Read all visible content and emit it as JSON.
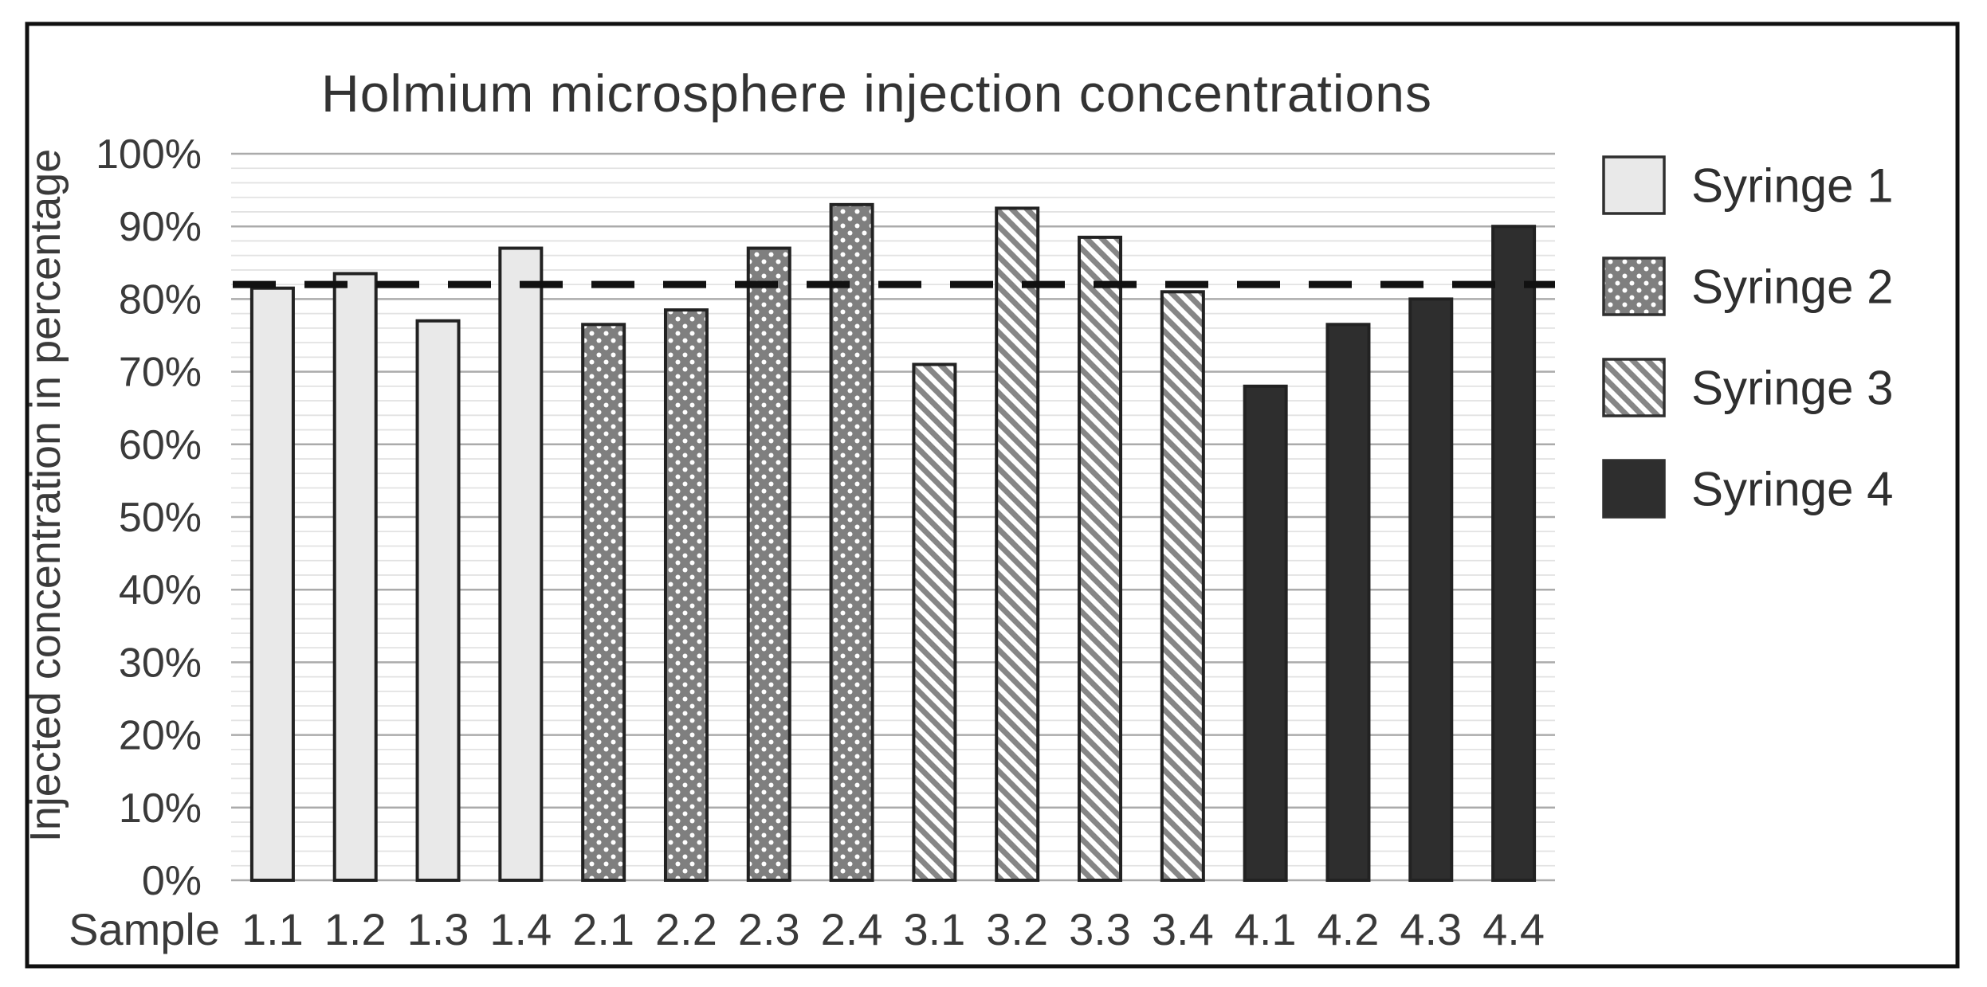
{
  "title": "Holmium microsphere injection concentrations",
  "y_axis": {
    "label": "Injected concentration in percentage",
    "tick_labels": [
      "100%",
      "90%",
      "80%",
      "70%",
      "60%",
      "50%",
      "40%",
      "30%",
      "20%",
      "10%",
      "0%"
    ]
  },
  "x_axis": {
    "label": "Sample",
    "tick_labels": [
      "1.1",
      "1.2",
      "1.3",
      "1.4",
      "2.1",
      "2.2",
      "2.3",
      "2.4",
      "3.1",
      "3.2",
      "3.3",
      "3.4",
      "4.1",
      "4.2",
      "4.3",
      "4.4"
    ]
  },
  "legend": {
    "position": "right",
    "entries": [
      "Syringe 1",
      "Syringe 2",
      "Syringe 3",
      "Syringe 4"
    ]
  },
  "colors": {
    "text": "#3a3a3a",
    "title_text": "#333333",
    "frame": "#101010",
    "grid_major": "#ababab",
    "grid_minor": "#e2e2e2",
    "bar_border": "#222222",
    "syringe1_fill": "#e9e9e9",
    "syringe2_base": "#7f7f7f",
    "syringe2_dot": "#ffffff",
    "syringe3_base": "#ffffff",
    "syringe3_stripe": "#868686",
    "syringe4_fill": "#2e2e2e",
    "reference_line": "#111111"
  },
  "chart_data": {
    "type": "bar",
    "title": "Holmium microsphere injection concentrations",
    "xlabel": "Sample",
    "ylabel": "Injected concentration in percentage",
    "ylim": [
      0,
      100
    ],
    "y_major_step": 10,
    "y_minor_step": 2,
    "grid": "horizontal",
    "legend_position": "right",
    "categories": [
      "1.1",
      "1.2",
      "1.3",
      "1.4",
      "2.1",
      "2.2",
      "2.3",
      "2.4",
      "3.1",
      "3.2",
      "3.3",
      "3.4",
      "4.1",
      "4.2",
      "4.3",
      "4.4"
    ],
    "series": [
      {
        "name": "Syringe 1",
        "pattern": "light-solid",
        "categories": [
          "1.1",
          "1.2",
          "1.3",
          "1.4"
        ],
        "values": [
          81.5,
          83.5,
          77,
          87
        ]
      },
      {
        "name": "Syringe 2",
        "pattern": "dark-dotted",
        "categories": [
          "2.1",
          "2.2",
          "2.3",
          "2.4"
        ],
        "values": [
          76.5,
          78.5,
          87,
          93
        ]
      },
      {
        "name": "Syringe 3",
        "pattern": "diagonal-striped",
        "categories": [
          "3.1",
          "3.2",
          "3.3",
          "3.4"
        ],
        "values": [
          71,
          92.5,
          88.5,
          81
        ]
      },
      {
        "name": "Syringe 4",
        "pattern": "dark-solid",
        "categories": [
          "4.1",
          "4.2",
          "4.3",
          "4.4"
        ],
        "values": [
          68,
          76.5,
          80,
          90
        ]
      }
    ],
    "reference_line": {
      "value": 82,
      "style": "dashed"
    }
  }
}
